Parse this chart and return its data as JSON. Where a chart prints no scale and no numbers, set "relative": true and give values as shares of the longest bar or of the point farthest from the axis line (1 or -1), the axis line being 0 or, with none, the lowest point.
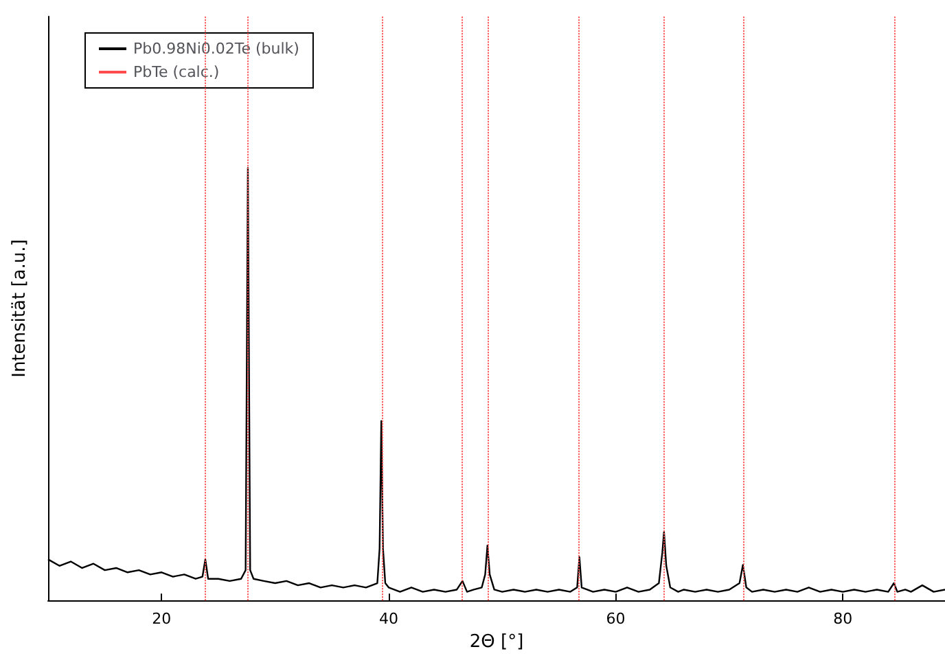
{
  "chart_data": {
    "type": "line",
    "relative": true,
    "xlabel": "2Θ [°]",
    "ylabel": "Intensität [a.u.]",
    "xlim": [
      10,
      89
    ],
    "xticks": [
      20,
      40,
      60,
      80
    ],
    "grid": false,
    "legend": "top left",
    "marker": "none",
    "tick_labels": "x",
    "series": [
      {
        "name": "Pb0.98Ni0.02Te (bulk)",
        "color": "#000000",
        "line_style": "solid",
        "x": [
          10,
          11,
          12,
          13,
          14,
          15,
          16,
          17,
          18,
          19,
          20,
          21,
          22,
          23,
          23.6,
          23.85,
          24.1,
          25,
          26,
          27,
          27.4,
          27.6,
          27.8,
          28.1,
          29,
          30,
          31,
          32,
          33,
          34,
          35,
          36,
          37,
          38,
          39,
          39.2,
          39.35,
          39.5,
          39.7,
          40,
          41,
          42,
          43,
          44,
          45,
          46,
          46.5,
          46.9,
          47.5,
          48.2,
          48.5,
          48.7,
          48.9,
          49.3,
          50,
          51,
          52,
          53,
          54,
          55,
          56,
          56.6,
          56.8,
          57,
          58,
          59,
          60,
          61,
          62,
          63,
          63.8,
          64.1,
          64.25,
          64.45,
          64.8,
          65.5,
          66,
          67,
          68,
          69,
          70,
          70.9,
          71.2,
          71.5,
          72,
          73,
          74,
          75,
          76,
          77,
          78,
          79,
          80,
          81,
          82,
          83,
          84,
          84.5,
          84.8,
          85.5,
          86,
          87,
          88,
          89
        ],
        "values": [
          0.095,
          0.08,
          0.09,
          0.075,
          0.085,
          0.07,
          0.075,
          0.065,
          0.07,
          0.06,
          0.065,
          0.055,
          0.06,
          0.05,
          0.055,
          0.095,
          0.05,
          0.05,
          0.045,
          0.05,
          0.07,
          1.0,
          0.07,
          0.05,
          0.045,
          0.04,
          0.045,
          0.035,
          0.04,
          0.03,
          0.035,
          0.03,
          0.035,
          0.03,
          0.04,
          0.12,
          0.415,
          0.12,
          0.04,
          0.03,
          0.02,
          0.03,
          0.02,
          0.025,
          0.02,
          0.025,
          0.045,
          0.02,
          0.025,
          0.03,
          0.06,
          0.127,
          0.06,
          0.025,
          0.02,
          0.025,
          0.02,
          0.025,
          0.02,
          0.025,
          0.02,
          0.03,
          0.1,
          0.03,
          0.02,
          0.025,
          0.02,
          0.03,
          0.02,
          0.025,
          0.04,
          0.11,
          0.158,
          0.08,
          0.03,
          0.02,
          0.025,
          0.02,
          0.025,
          0.02,
          0.025,
          0.04,
          0.082,
          0.03,
          0.02,
          0.025,
          0.02,
          0.025,
          0.02,
          0.03,
          0.02,
          0.025,
          0.02,
          0.025,
          0.02,
          0.025,
          0.02,
          0.04,
          0.02,
          0.025,
          0.02,
          0.035,
          0.02,
          0.025
        ]
      },
      {
        "name": "PbTe (calc.)",
        "color": "#ff4d4d",
        "line_style": "dotted"
      }
    ],
    "ref_lines": [
      {
        "axis": "x",
        "value": 23.85,
        "color": "#ff4d4d",
        "line_style": "dotted"
      },
      {
        "axis": "x",
        "value": 27.6,
        "color": "#ff4d4d",
        "line_style": "dotted"
      },
      {
        "axis": "x",
        "value": 39.4,
        "color": "#ff4d4d",
        "line_style": "dotted"
      },
      {
        "axis": "x",
        "value": 46.5,
        "color": "#ff4d4d",
        "line_style": "dotted"
      },
      {
        "axis": "x",
        "value": 48.7,
        "color": "#ff4d4d",
        "line_style": "dotted"
      },
      {
        "axis": "x",
        "value": 56.7,
        "color": "#ff4d4d",
        "line_style": "dotted"
      },
      {
        "axis": "x",
        "value": 64.2,
        "color": "#ff4d4d",
        "line_style": "dotted"
      },
      {
        "axis": "x",
        "value": 71.2,
        "color": "#ff4d4d",
        "line_style": "dotted"
      },
      {
        "axis": "x",
        "value": 84.6,
        "color": "#ff4d4d",
        "line_style": "dotted"
      }
    ]
  }
}
